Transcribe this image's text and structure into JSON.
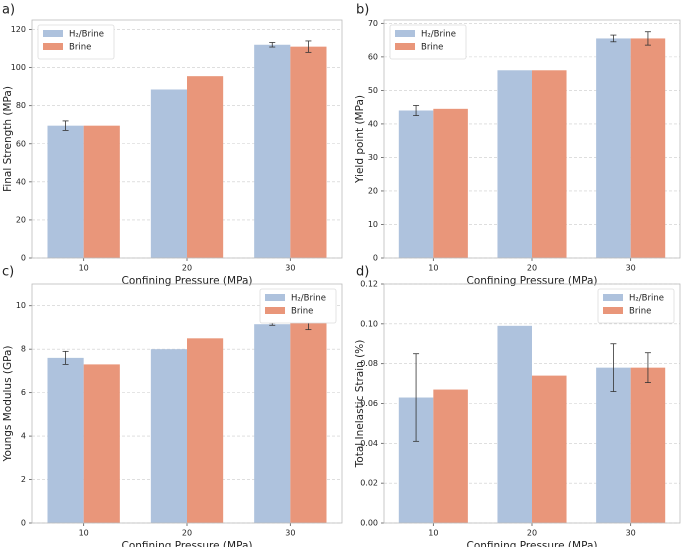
{
  "chart_data": [
    {
      "type": "bar",
      "label": "a)",
      "xlabel": "Confining Pressure (MPa)",
      "ylabel": "Final Strength (MPa)",
      "categories": [
        "10",
        "20",
        "30"
      ],
      "ylim": [
        0,
        125
      ],
      "yticks": [
        0,
        20,
        40,
        60,
        80,
        100,
        120
      ],
      "grid": true,
      "legend": "upper left",
      "series": [
        {
          "name": "H₂/Brine",
          "color": "#aec2dd",
          "values": [
            69.5,
            88.5,
            112
          ],
          "errors": [
            2.5,
            null,
            1.2
          ]
        },
        {
          "name": "Brine",
          "color": "#e9967a",
          "values": [
            69.5,
            95.5,
            111
          ],
          "errors": [
            null,
            null,
            3
          ]
        }
      ]
    },
    {
      "type": "bar",
      "label": "b)",
      "xlabel": "Confining Pressure (MPa)",
      "ylabel": "Yield point (MPa)",
      "categories": [
        "10",
        "20",
        "30"
      ],
      "ylim": [
        0,
        71
      ],
      "yticks": [
        0,
        10,
        20,
        30,
        40,
        50,
        60,
        70
      ],
      "grid": true,
      "legend": "upper left",
      "series": [
        {
          "name": "H₂/Brine",
          "color": "#aec2dd",
          "values": [
            44,
            56,
            65.5
          ],
          "errors": [
            1.5,
            null,
            1
          ]
        },
        {
          "name": "Brine",
          "color": "#e9967a",
          "values": [
            44.5,
            56,
            65.5
          ],
          "errors": [
            null,
            null,
            2
          ]
        }
      ]
    },
    {
      "type": "bar",
      "label": "c)",
      "xlabel": "Confining Pressure (MPa)",
      "ylabel": "Youngs Modulus (GPa)",
      "categories": [
        "10",
        "20",
        "30"
      ],
      "ylim": [
        0,
        11
      ],
      "yticks": [
        0,
        2,
        4,
        6,
        8,
        10
      ],
      "grid": true,
      "legend": "upper right",
      "series": [
        {
          "name": "H₂/Brine",
          "color": "#aec2dd",
          "values": [
            7.6,
            8.0,
            9.15
          ],
          "errors": [
            0.3,
            null,
            0.05
          ]
        },
        {
          "name": "Brine",
          "color": "#e9967a",
          "values": [
            7.3,
            8.5,
            9.4
          ],
          "errors": [
            null,
            null,
            0.5
          ]
        }
      ]
    },
    {
      "type": "bar",
      "label": "d)",
      "xlabel": "Confining Pressure (MPa)",
      "ylabel": "Total Inelastic Strain (%)",
      "categories": [
        "10",
        "20",
        "30"
      ],
      "ylim": [
        0,
        0.12
      ],
      "yticks": [
        {
          "value": 0,
          "label": "0.00"
        },
        {
          "value": 0.02,
          "label": "0.02"
        },
        {
          "value": 0.04,
          "label": "0.04"
        },
        {
          "value": 0.06,
          "label": "0.06"
        },
        {
          "value": 0.08,
          "label": "0.08"
        },
        {
          "value": 0.1,
          "label": "0.10"
        },
        {
          "value": 0.12,
          "label": "0.12"
        }
      ],
      "grid": true,
      "legend": "upper right",
      "series": [
        {
          "name": "H₂/Brine",
          "color": "#aec2dd",
          "values": [
            0.063,
            0.099,
            0.078
          ],
          "errors": [
            0.022,
            null,
            0.012
          ]
        },
        {
          "name": "Brine",
          "color": "#e9967a",
          "values": [
            0.067,
            0.074,
            0.078
          ],
          "errors": [
            null,
            null,
            0.0075
          ]
        }
      ]
    }
  ]
}
